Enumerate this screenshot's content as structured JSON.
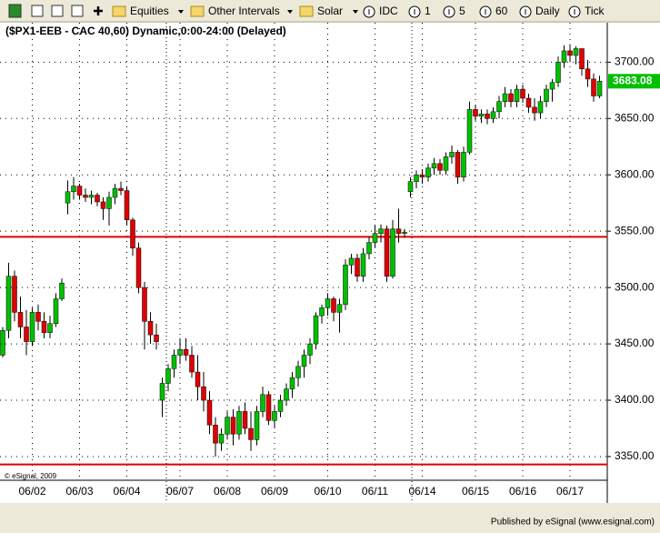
{
  "toolbar": {
    "items": [
      "Equities",
      "Other Intervals",
      "Solar",
      "IDC",
      "1",
      "5",
      "60",
      "Daily",
      "Tick"
    ]
  },
  "chart_data": {
    "type": "candlestick",
    "title": "($PX1-EEB - CAC 40,60) Dynamic,0:00-24:00 (Delayed)",
    "copyright": "© eSignal, 2009",
    "footer": "Published by eSignal (www.esignal.com)",
    "up_color": "#00c000",
    "down_color": "#e00000",
    "grid": true,
    "open": [
      3440,
      3462,
      3510,
      3478,
      3465,
      3452,
      3478,
      3470,
      3460,
      3468,
      3490,
      3575,
      3585,
      3590,
      3582,
      3580,
      3582,
      3576,
      3570,
      3580,
      3588,
      3586,
      3560,
      3535,
      3500,
      3470,
      3458,
      3400,
      3415,
      3428,
      3440,
      3445,
      3440,
      3425,
      3412,
      3400,
      3378,
      3362,
      3370,
      3385,
      3370,
      3390,
      3375,
      3365,
      3390,
      3405,
      3382,
      3390,
      3400,
      3410,
      3420,
      3430,
      3440,
      3450,
      3475,
      3482,
      3490,
      3478,
      3485,
      3520,
      3526,
      3510,
      3530,
      3540,
      3548,
      3552,
      3510,
      3552,
      3548,
      3585,
      3594,
      3600,
      3598,
      3606,
      3610,
      3604,
      3616,
      3620,
      3598,
      3620,
      3658,
      3652,
      3654,
      3650,
      3656,
      3665,
      3672,
      3665,
      3676,
      3668,
      3660,
      3655,
      3665,
      3676,
      3682,
      3700,
      3710,
      3706,
      3712,
      3694,
      3685,
      3670
    ],
    "high": [
      3465,
      3522,
      3515,
      3492,
      3480,
      3482,
      3485,
      3478,
      3475,
      3495,
      3508,
      3595,
      3598,
      3592,
      3588,
      3586,
      3584,
      3580,
      3585,
      3592,
      3594,
      3590,
      3562,
      3540,
      3505,
      3478,
      3468,
      3420,
      3432,
      3445,
      3455,
      3455,
      3448,
      3440,
      3425,
      3408,
      3385,
      3375,
      3390,
      3392,
      3395,
      3398,
      3390,
      3395,
      3412,
      3408,
      3395,
      3405,
      3415,
      3425,
      3435,
      3445,
      3455,
      3478,
      3485,
      3495,
      3492,
      3490,
      3525,
      3530,
      3530,
      3535,
      3545,
      3555,
      3556,
      3555,
      3560,
      3570,
      3552,
      3598,
      3604,
      3605,
      3610,
      3615,
      3614,
      3620,
      3626,
      3622,
      3625,
      3665,
      3662,
      3658,
      3658,
      3660,
      3670,
      3678,
      3676,
      3680,
      3680,
      3672,
      3668,
      3670,
      3680,
      3685,
      3705,
      3715,
      3716,
      3714,
      3712,
      3702,
      3690,
      3688
    ],
    "low": [
      3438,
      3455,
      3470,
      3455,
      3440,
      3448,
      3462,
      3455,
      3455,
      3465,
      3488,
      3565,
      3578,
      3578,
      3576,
      3574,
      3572,
      3560,
      3555,
      3574,
      3582,
      3555,
      3528,
      3495,
      3445,
      3450,
      3445,
      3385,
      3408,
      3420,
      3432,
      3435,
      3420,
      3400,
      3390,
      3370,
      3350,
      3355,
      3365,
      3360,
      3365,
      3370,
      3355,
      3360,
      3385,
      3378,
      3375,
      3385,
      3395,
      3402,
      3412,
      3420,
      3432,
      3445,
      3468,
      3475,
      3470,
      3460,
      3480,
      3512,
      3505,
      3505,
      3525,
      3535,
      3540,
      3505,
      3508,
      3540,
      3544,
      3580,
      3588,
      3592,
      3594,
      3600,
      3600,
      3600,
      3610,
      3592,
      3594,
      3618,
      3648,
      3646,
      3645,
      3646,
      3650,
      3660,
      3660,
      3660,
      3664,
      3655,
      3648,
      3650,
      3660,
      3665,
      3678,
      3695,
      3700,
      3698,
      3688,
      3678,
      3665,
      3668
    ],
    "close": [
      3462,
      3510,
      3478,
      3465,
      3452,
      3478,
      3470,
      3460,
      3468,
      3490,
      3504,
      3585,
      3590,
      3582,
      3580,
      3582,
      3576,
      3570,
      3580,
      3588,
      3586,
      3560,
      3535,
      3500,
      3470,
      3458,
      3452,
      3415,
      3428,
      3440,
      3445,
      3440,
      3425,
      3412,
      3400,
      3378,
      3362,
      3370,
      3385,
      3370,
      3390,
      3375,
      3365,
      3390,
      3405,
      3382,
      3390,
      3400,
      3410,
      3420,
      3430,
      3440,
      3450,
      3475,
      3482,
      3490,
      3478,
      3485,
      3520,
      3526,
      3510,
      3530,
      3540,
      3548,
      3552,
      3510,
      3552,
      3548,
      3549,
      3594,
      3600,
      3598,
      3606,
      3610,
      3604,
      3616,
      3620,
      3598,
      3620,
      3658,
      3652,
      3654,
      3650,
      3656,
      3665,
      3672,
      3665,
      3676,
      3668,
      3660,
      3655,
      3665,
      3676,
      3682,
      3700,
      3710,
      3706,
      3712,
      3694,
      3685,
      3670,
      3683
    ],
    "last_price": {
      "value": 3683.08,
      "label": "3683.08"
    },
    "ylim": [
      3329,
      3739
    ],
    "yticks": [
      {
        "value": 3350,
        "label": "3350.00"
      },
      {
        "value": 3400,
        "label": "3400.00"
      },
      {
        "value": 3450,
        "label": "3450.00"
      },
      {
        "value": 3500,
        "label": "3500.00"
      },
      {
        "value": 3550,
        "label": "3550.00"
      },
      {
        "value": 3600,
        "label": "3600.00"
      },
      {
        "value": 3650,
        "label": "3650.00"
      },
      {
        "value": 3700,
        "label": "3700.00"
      }
    ],
    "xticks": [
      {
        "value": 5,
        "label": "06/02"
      },
      {
        "value": 13,
        "label": "06/03"
      },
      {
        "value": 21,
        "label": "06/04"
      },
      {
        "value": 30,
        "label": "06/07"
      },
      {
        "value": 38,
        "label": "06/08"
      },
      {
        "value": 46,
        "label": "06/09"
      },
      {
        "value": 55,
        "label": "06/10"
      },
      {
        "value": 63,
        "label": "06/11"
      },
      {
        "value": 71,
        "label": "06/14"
      },
      {
        "value": 80,
        "label": "06/15"
      },
      {
        "value": 88,
        "label": "06/16"
      },
      {
        "value": 96,
        "label": "06/17"
      }
    ],
    "horizontal_lines": [
      {
        "value": 3545,
        "color": "#e00000"
      },
      {
        "value": 3343,
        "color": "#e00000"
      }
    ]
  }
}
